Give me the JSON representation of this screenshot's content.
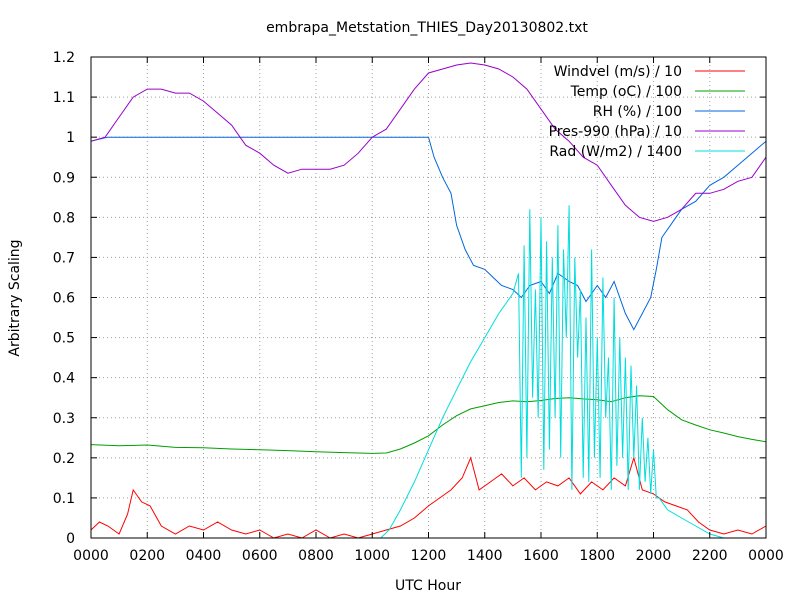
{
  "chart_data": {
    "type": "line",
    "title": "embrapa_Metstation_THIES_Day20130802.txt",
    "xlabel": "UTC Hour",
    "ylabel": "Arbitrary Scaling",
    "xlim": [
      0,
      24
    ],
    "ylim": [
      0,
      1.2
    ],
    "xticks": [
      {
        "value": 0,
        "label": "0000"
      },
      {
        "value": 2,
        "label": "0200"
      },
      {
        "value": 4,
        "label": "0400"
      },
      {
        "value": 6,
        "label": "0600"
      },
      {
        "value": 8,
        "label": "0800"
      },
      {
        "value": 10,
        "label": "1000"
      },
      {
        "value": 12,
        "label": "1200"
      },
      {
        "value": 14,
        "label": "1400"
      },
      {
        "value": 16,
        "label": "1600"
      },
      {
        "value": 18,
        "label": "1800"
      },
      {
        "value": 20,
        "label": "2000"
      },
      {
        "value": 22,
        "label": "2200"
      },
      {
        "value": 24,
        "label": "0000"
      }
    ],
    "yticks": [
      {
        "value": 0,
        "label": "0"
      },
      {
        "value": 0.1,
        "label": "0.1"
      },
      {
        "value": 0.2,
        "label": "0.2"
      },
      {
        "value": 0.3,
        "label": "0.3"
      },
      {
        "value": 0.4,
        "label": "0.4"
      },
      {
        "value": 0.5,
        "label": "0.5"
      },
      {
        "value": 0.6,
        "label": "0.6"
      },
      {
        "value": 0.7,
        "label": "0.7"
      },
      {
        "value": 0.8,
        "label": "0.8"
      },
      {
        "value": 0.9,
        "label": "0.9"
      },
      {
        "value": 1.0,
        "label": "1"
      },
      {
        "value": 1.1,
        "label": "1.1"
      },
      {
        "value": 1.2,
        "label": "1.2"
      }
    ],
    "grid": true,
    "legend_position": "top-right",
    "series": [
      {
        "name": "Windvel (m/s) / 10",
        "color": "#ff0000",
        "x": [
          0,
          0.3,
          0.6,
          1.0,
          1.3,
          1.5,
          1.8,
          2.1,
          2.5,
          3.0,
          3.5,
          4.0,
          4.5,
          5.0,
          5.5,
          6.0,
          6.5,
          7.0,
          7.5,
          8.0,
          8.5,
          9.0,
          9.5,
          10.0,
          10.5,
          11.0,
          11.5,
          12.0,
          12.4,
          12.8,
          13.2,
          13.5,
          13.8,
          14.2,
          14.6,
          15.0,
          15.4,
          15.8,
          16.2,
          16.6,
          17.0,
          17.4,
          17.8,
          18.2,
          18.6,
          19.0,
          19.3,
          19.6,
          20.0,
          20.4,
          20.8,
          21.2,
          21.6,
          22.0,
          22.5,
          23.0,
          23.5,
          24.0
        ],
        "y": [
          0.02,
          0.04,
          0.03,
          0.01,
          0.06,
          0.12,
          0.09,
          0.08,
          0.03,
          0.01,
          0.03,
          0.02,
          0.04,
          0.02,
          0.01,
          0.02,
          0.0,
          0.01,
          0.0,
          0.02,
          0.0,
          0.01,
          0.0,
          0.01,
          0.02,
          0.03,
          0.05,
          0.08,
          0.1,
          0.12,
          0.15,
          0.2,
          0.12,
          0.14,
          0.16,
          0.13,
          0.15,
          0.12,
          0.14,
          0.13,
          0.15,
          0.11,
          0.14,
          0.12,
          0.15,
          0.13,
          0.2,
          0.12,
          0.11,
          0.09,
          0.08,
          0.07,
          0.04,
          0.02,
          0.01,
          0.02,
          0.01,
          0.03
        ]
      },
      {
        "name": "Temp (oC) / 100",
        "color": "#00a000",
        "x": [
          0,
          1,
          2,
          3,
          4,
          5,
          6,
          7,
          8,
          9,
          10,
          10.5,
          11,
          11.5,
          12,
          12.5,
          13,
          13.5,
          14,
          14.5,
          15,
          15.5,
          16,
          16.5,
          17,
          17.5,
          18,
          18.5,
          19,
          19.5,
          20,
          20.5,
          21,
          21.5,
          22,
          22.5,
          23,
          23.5,
          24
        ],
        "y": [
          0.233,
          0.23,
          0.232,
          0.226,
          0.225,
          0.222,
          0.22,
          0.218,
          0.215,
          0.213,
          0.211,
          0.212,
          0.222,
          0.237,
          0.255,
          0.282,
          0.305,
          0.322,
          0.33,
          0.338,
          0.342,
          0.34,
          0.343,
          0.348,
          0.35,
          0.347,
          0.345,
          0.34,
          0.35,
          0.355,
          0.353,
          0.32,
          0.295,
          0.282,
          0.27,
          0.262,
          0.253,
          0.246,
          0.24
        ]
      },
      {
        "name": "RH (%) / 100",
        "color": "#0066dd",
        "x": [
          0,
          0.3,
          0.6,
          1,
          2,
          3,
          4,
          5,
          6,
          7,
          8,
          9,
          10,
          11,
          12,
          12.2,
          12.5,
          12.8,
          13.0,
          13.3,
          13.6,
          14.0,
          14.3,
          14.6,
          15.0,
          15.3,
          15.6,
          16.0,
          16.3,
          16.6,
          17.0,
          17.3,
          17.6,
          18.0,
          18.3,
          18.6,
          19.0,
          19.3,
          19.6,
          19.9,
          20.1,
          20.3,
          20.6,
          21.0,
          21.5,
          22.0,
          22.5,
          23.0,
          23.5,
          24.0
        ],
        "y": [
          0.99,
          0.995,
          1.0,
          1.0,
          1.0,
          1.0,
          1.0,
          1.0,
          1.0,
          1.0,
          1.0,
          1.0,
          1.0,
          1.0,
          1.0,
          0.95,
          0.9,
          0.86,
          0.78,
          0.72,
          0.68,
          0.67,
          0.65,
          0.63,
          0.62,
          0.6,
          0.63,
          0.64,
          0.61,
          0.66,
          0.64,
          0.63,
          0.59,
          0.63,
          0.6,
          0.64,
          0.56,
          0.52,
          0.56,
          0.6,
          0.67,
          0.75,
          0.78,
          0.82,
          0.84,
          0.88,
          0.9,
          0.93,
          0.96,
          0.99
        ]
      },
      {
        "name": "Pres-990 (hPa) / 10",
        "color": "#9900cc",
        "x": [
          0,
          0.5,
          1.0,
          1.5,
          2.0,
          2.5,
          3.0,
          3.5,
          4.0,
          4.5,
          5.0,
          5.5,
          6.0,
          6.5,
          7.0,
          7.5,
          8.0,
          8.5,
          9.0,
          9.5,
          10.0,
          10.5,
          11.0,
          11.5,
          12.0,
          12.5,
          13.0,
          13.5,
          14.0,
          14.5,
          15.0,
          15.5,
          16.0,
          16.5,
          17.0,
          17.5,
          18.0,
          18.5,
          19.0,
          19.5,
          20.0,
          20.5,
          21.0,
          21.5,
          22.0,
          22.5,
          23.0,
          23.5,
          24.0
        ],
        "y": [
          0.99,
          1.0,
          1.05,
          1.1,
          1.12,
          1.12,
          1.11,
          1.11,
          1.09,
          1.06,
          1.03,
          0.98,
          0.96,
          0.93,
          0.91,
          0.92,
          0.92,
          0.92,
          0.93,
          0.96,
          1.0,
          1.02,
          1.07,
          1.12,
          1.16,
          1.17,
          1.18,
          1.185,
          1.18,
          1.17,
          1.15,
          1.12,
          1.07,
          1.02,
          0.99,
          0.95,
          0.93,
          0.88,
          0.83,
          0.8,
          0.79,
          0.8,
          0.82,
          0.86,
          0.86,
          0.87,
          0.89,
          0.9,
          0.95
        ]
      },
      {
        "name": "Rad (W/m2) / 1400",
        "color": "#00dddd",
        "x": [
          0,
          10.3,
          10.6,
          11.0,
          11.5,
          12.0,
          12.5,
          13.0,
          13.5,
          14.0,
          14.5,
          15.0,
          15.2,
          15.3,
          15.4,
          15.5,
          15.6,
          15.7,
          15.8,
          15.9,
          16.0,
          16.1,
          16.2,
          16.3,
          16.4,
          16.5,
          16.6,
          16.7,
          16.8,
          16.9,
          17.0,
          17.1,
          17.2,
          17.3,
          17.4,
          17.5,
          17.6,
          17.7,
          17.8,
          17.9,
          18.0,
          18.1,
          18.2,
          18.3,
          18.4,
          18.5,
          18.6,
          18.7,
          18.8,
          18.9,
          19.0,
          19.1,
          19.2,
          19.3,
          19.4,
          19.5,
          19.6,
          19.7,
          19.8,
          19.9,
          20.0,
          20.1,
          20.2,
          20.5,
          21.0,
          21.5,
          22.0,
          22.5,
          23.0,
          24.0
        ],
        "y": [
          0,
          0,
          0.02,
          0.07,
          0.14,
          0.22,
          0.3,
          0.37,
          0.44,
          0.5,
          0.56,
          0.61,
          0.66,
          0.15,
          0.73,
          0.2,
          0.82,
          0.35,
          0.62,
          0.3,
          0.8,
          0.17,
          0.74,
          0.22,
          0.7,
          0.3,
          0.78,
          0.2,
          0.72,
          0.5,
          0.83,
          0.12,
          0.7,
          0.45,
          0.62,
          0.15,
          0.55,
          0.14,
          0.72,
          0.2,
          0.5,
          0.15,
          0.65,
          0.3,
          0.45,
          0.12,
          0.6,
          0.18,
          0.5,
          0.2,
          0.45,
          0.12,
          0.43,
          0.2,
          0.38,
          0.12,
          0.3,
          0.14,
          0.25,
          0.11,
          0.22,
          0.1,
          0.1,
          0.07,
          0.05,
          0.03,
          0.01,
          0,
          0,
          0
        ]
      }
    ]
  }
}
